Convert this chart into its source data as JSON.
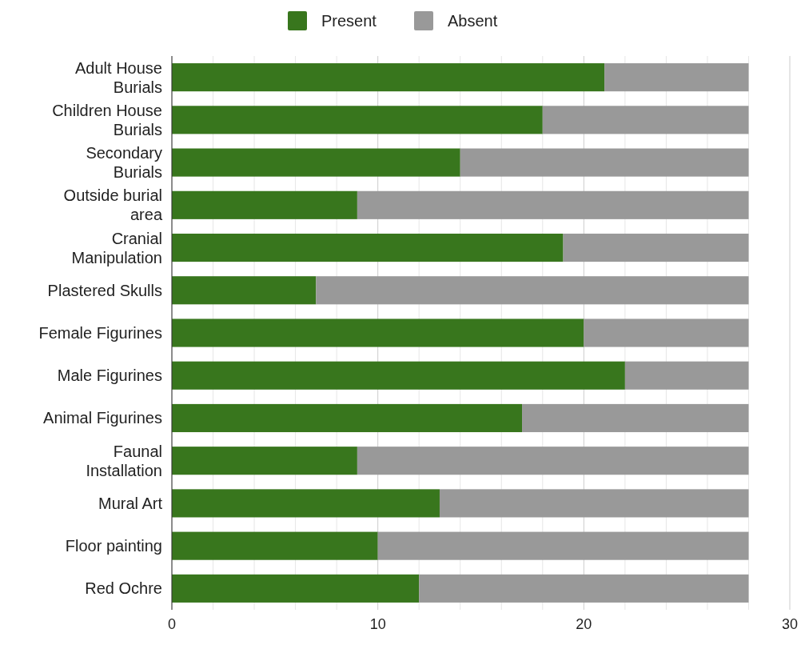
{
  "chart_data": {
    "type": "bar",
    "orientation": "horizontal",
    "stacked": true,
    "categories": [
      "Adult House Burials",
      "Children House Burials",
      "Secondary Burials",
      "Outside burial area",
      "Cranial Manipulation",
      "Plastered Skulls",
      "Female Figurines",
      "Male Figurines",
      "Animal Figurines",
      "Faunal Installation",
      "Mural Art",
      "Floor painting",
      "Red Ochre"
    ],
    "series": [
      {
        "name": "Present",
        "color": "#38761d",
        "values": [
          21,
          18,
          14,
          9,
          19,
          7,
          20,
          22,
          17,
          9,
          13,
          10,
          12
        ]
      },
      {
        "name": "Absent",
        "color": "#999999",
        "values": [
          7,
          10,
          14,
          19,
          9,
          21,
          8,
          6,
          11,
          19,
          15,
          18,
          16
        ]
      }
    ],
    "xlim": [
      0,
      30
    ],
    "xticks": [
      0,
      {
        "value": 2,
        "label": null
      },
      {
        "value": 4,
        "label": null
      },
      {
        "value": 6,
        "label": null
      },
      {
        "value": 8,
        "label": null
      },
      10,
      {
        "value": 12,
        "label": null
      },
      {
        "value": 14,
        "label": null
      },
      {
        "value": 16,
        "label": null
      },
      {
        "value": 18,
        "label": null
      },
      20,
      {
        "value": 22,
        "label": null
      },
      {
        "value": 24,
        "label": null
      },
      {
        "value": 26,
        "label": null
      },
      {
        "value": 28,
        "label": null
      },
      30
    ],
    "grid": "x",
    "legend": "top"
  }
}
